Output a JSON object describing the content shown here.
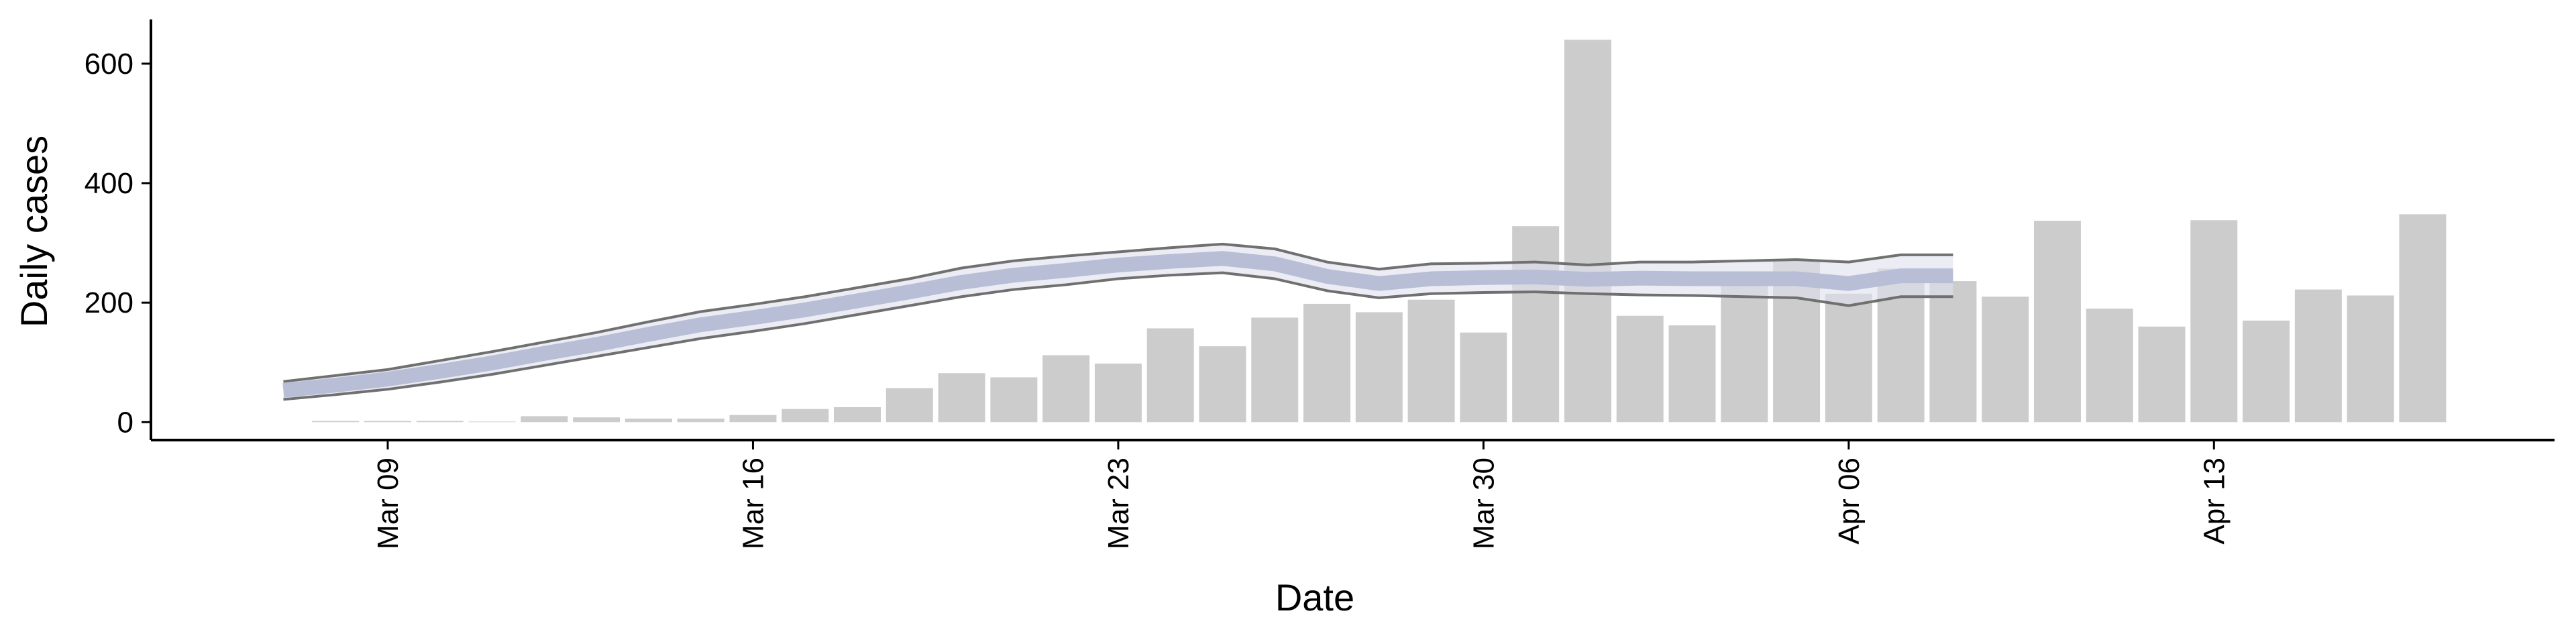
{
  "chart_data": {
    "type": "bar_band",
    "xlabel": "Date",
    "ylabel": "Daily cases",
    "x": [
      "Mar 07",
      "Mar 08",
      "Mar 09",
      "Mar 10",
      "Mar 11",
      "Mar 12",
      "Mar 13",
      "Mar 14",
      "Mar 15",
      "Mar 16",
      "Mar 17",
      "Mar 18",
      "Mar 19",
      "Mar 20",
      "Mar 21",
      "Mar 22",
      "Mar 23",
      "Mar 24",
      "Mar 25",
      "Mar 26",
      "Mar 27",
      "Mar 28",
      "Mar 29",
      "Mar 30",
      "Mar 31",
      "Apr 01",
      "Apr 02",
      "Apr 03",
      "Apr 04",
      "Apr 05",
      "Apr 06",
      "Apr 07",
      "Apr 08",
      "Apr 09",
      "Apr 10",
      "Apr 11",
      "Apr 12",
      "Apr 13",
      "Apr 14",
      "Apr 15",
      "Apr 16",
      "Apr 17"
    ],
    "bars": {
      "color": "#cccccc",
      "values": [
        null,
        2,
        2,
        2,
        1,
        10,
        8,
        6,
        6,
        12,
        22,
        25,
        57,
        82,
        75,
        112,
        98,
        157,
        127,
        175,
        198,
        184,
        205,
        150,
        328,
        640,
        178,
        162,
        232,
        272,
        215,
        257,
        236,
        210,
        337,
        190,
        160,
        338,
        170,
        222,
        212,
        348
      ]
    },
    "band": {
      "color": "#dde0ec",
      "upper": [
        68,
        78,
        88,
        103,
        118,
        134,
        150,
        168,
        185,
        197,
        210,
        225,
        240,
        258,
        270,
        278,
        285,
        292,
        298,
        290,
        268,
        256,
        265,
        266,
        268,
        263,
        268,
        268,
        270,
        272,
        268,
        280,
        280,
        null,
        null,
        null,
        null,
        null,
        null,
        null,
        null,
        null
      ],
      "lower": [
        38,
        46,
        55,
        67,
        80,
        95,
        110,
        125,
        140,
        152,
        165,
        180,
        195,
        210,
        222,
        230,
        240,
        246,
        250,
        240,
        220,
        208,
        215,
        217,
        218,
        215,
        213,
        212,
        210,
        208,
        195,
        210,
        210,
        null,
        null,
        null,
        null,
        null,
        null,
        null,
        null,
        null
      ],
      "median": [
        53,
        62,
        72,
        85,
        99,
        115,
        130,
        147,
        163,
        175,
        188,
        203,
        218,
        234,
        246,
        254,
        263,
        269,
        274,
        265,
        244,
        232,
        240,
        242,
        243,
        239,
        241,
        240,
        240,
        240,
        232,
        245,
        245,
        null,
        null,
        null,
        null,
        null,
        null,
        null,
        null,
        null
      ],
      "median_color": "#b8bed6",
      "bound_color": "#707070"
    },
    "ylim": [
      -30,
      674
    ],
    "yticks": [
      0,
      200,
      400,
      600
    ],
    "xticks": [
      "Mar 09",
      "Mar 16",
      "Mar 23",
      "Mar 30",
      "Apr 06",
      "Apr 13"
    ]
  }
}
